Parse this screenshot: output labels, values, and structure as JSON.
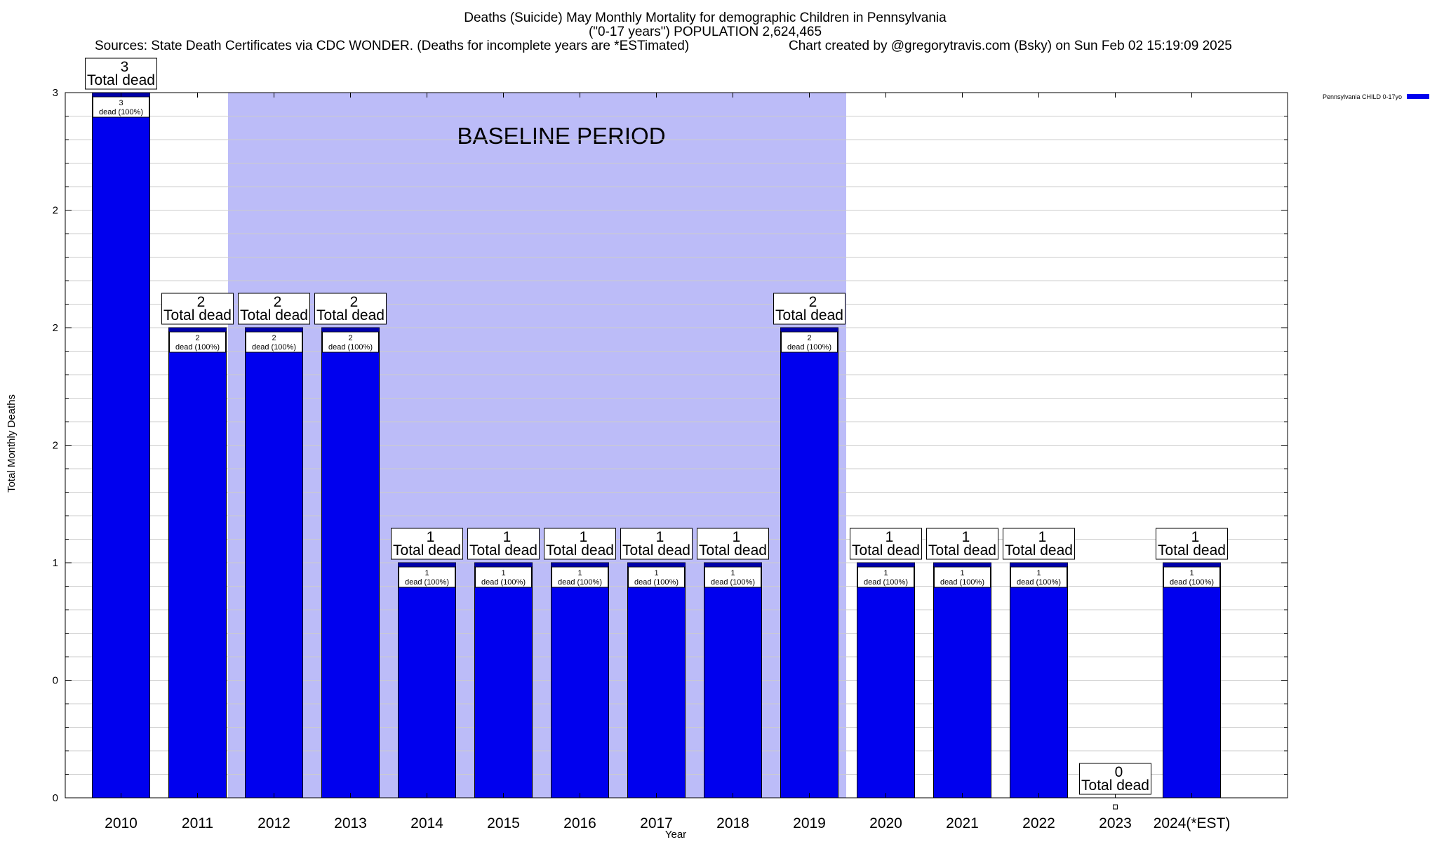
{
  "chart_data": {
    "type": "bar",
    "title": "Deaths (Suicide) May Monthly Mortality for demographic Children in Pennsylvania",
    "subtitle": "(\"0-17 years\") POPULATION 2,624,465",
    "sources": "Sources: State Death Certificates via CDC WONDER. (Deaths for incomplete years are *ESTimated)",
    "credit": "Chart created by @gregorytravis.com (Bsky) on Sun Feb 02 15:19:09 2025",
    "xlabel": "Year",
    "ylabel": "Total Monthly Deaths",
    "ylim": [
      0,
      3
    ],
    "y_tick_values": [
      0,
      0.5,
      1,
      1.5,
      2,
      2.5,
      3
    ],
    "y_tick_labels": [
      "0",
      "0",
      "1",
      "2",
      "2",
      "2",
      "3"
    ],
    "minor_grid_per_major": 5,
    "grid": true,
    "legend_position": "top-right",
    "categories": [
      "2010",
      "2011",
      "2012",
      "2013",
      "2014",
      "2015",
      "2016",
      "2017",
      "2018",
      "2019",
      "2020",
      "2021",
      "2022",
      "2023",
      "2024(*EST)"
    ],
    "series": [
      {
        "name": "Pennsylvania CHILD 0-17yo",
        "color": "#0000ee",
        "values": [
          3,
          2,
          2,
          2,
          1,
          1,
          1,
          1,
          1,
          2,
          1,
          1,
          1,
          0,
          1
        ]
      }
    ],
    "total_labels": [
      {
        "number": "3",
        "text": "Total dead"
      },
      {
        "number": "2",
        "text": "Total dead"
      },
      {
        "number": "2",
        "text": "Total dead"
      },
      {
        "number": "2",
        "text": "Total dead"
      },
      {
        "number": "1",
        "text": "Total dead"
      },
      {
        "number": "1",
        "text": "Total dead"
      },
      {
        "number": "1",
        "text": "Total dead"
      },
      {
        "number": "1",
        "text": "Total dead"
      },
      {
        "number": "1",
        "text": "Total dead"
      },
      {
        "number": "2",
        "text": "Total dead"
      },
      {
        "number": "1",
        "text": "Total dead"
      },
      {
        "number": "1",
        "text": "Total dead"
      },
      {
        "number": "1",
        "text": "Total dead"
      },
      {
        "number": "0",
        "text": "Total dead"
      },
      {
        "number": "1",
        "text": "Total dead"
      }
    ],
    "inner_labels": [
      {
        "number": "3",
        "text": "dead (100%)"
      },
      {
        "number": "2",
        "text": "dead (100%)"
      },
      {
        "number": "2",
        "text": "dead (100%)"
      },
      {
        "number": "2",
        "text": "dead (100%)"
      },
      {
        "number": "1",
        "text": "dead (100%)"
      },
      {
        "number": "1",
        "text": "dead (100%)"
      },
      {
        "number": "1",
        "text": "dead (100%)"
      },
      {
        "number": "1",
        "text": "dead (100%)"
      },
      {
        "number": "1",
        "text": "dead (100%)"
      },
      {
        "number": "2",
        "text": "dead (100%)"
      },
      {
        "number": "1",
        "text": "dead (100%)"
      },
      {
        "number": "1",
        "text": "dead (100%)"
      },
      {
        "number": "1",
        "text": "dead (100%)"
      },
      null,
      {
        "number": "1",
        "text": "dead (100%)"
      }
    ],
    "baseline": {
      "label": "BASELINE PERIOD",
      "start": "2012",
      "end": "2019",
      "color": "#bcbcf8"
    },
    "colors": {
      "bar": "#0000ee",
      "bar_top": "#0000a8",
      "grid": "#cccccc"
    }
  }
}
